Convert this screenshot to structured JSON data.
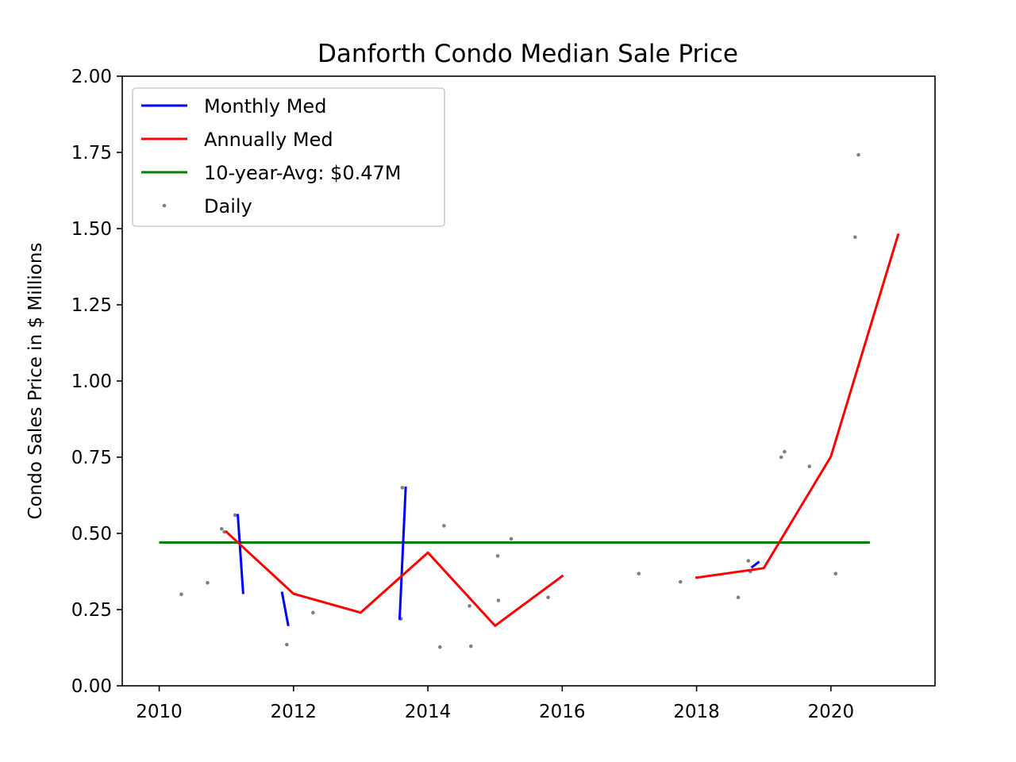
{
  "chart_data": {
    "type": "line",
    "title": "Danforth Condo Median Sale Price",
    "xlabel": "",
    "ylabel": "Condo Sales Price in $ Millions",
    "xlim": [
      2009.45,
      2021.55
    ],
    "ylim": [
      0,
      2.0
    ],
    "xticks": [
      2010,
      2012,
      2014,
      2016,
      2018,
      2020
    ],
    "yticks": [
      0.0,
      0.25,
      0.5,
      0.75,
      1.0,
      1.25,
      1.5,
      1.75,
      2.0
    ],
    "ytick_labels": [
      "0.00",
      "0.25",
      "0.50",
      "0.75",
      "1.00",
      "1.25",
      "1.50",
      "1.75",
      "2.00"
    ],
    "grid": false,
    "legend_position": "upper-left",
    "series": [
      {
        "name": "Monthly Med",
        "color": "#0000ff",
        "kind": "line-segments",
        "segments": [
          [
            [
              2011.17,
              0.56
            ],
            [
              2011.25,
              0.305
            ]
          ],
          [
            [
              2011.83,
              0.305
            ],
            [
              2011.92,
              0.2
            ]
          ],
          [
            [
              2013.58,
              0.22
            ],
            [
              2013.67,
              0.65
            ]
          ],
          [
            [
              2018.83,
              0.39
            ],
            [
              2018.92,
              0.405
            ]
          ]
        ]
      },
      {
        "name": "Annually Med",
        "color": "#ff0000",
        "kind": "line-segments",
        "segments": [
          [
            [
              2011.0,
              0.505
            ],
            [
              2012.0,
              0.302
            ],
            [
              2013.0,
              0.24
            ],
            [
              2014.0,
              0.437
            ],
            [
              2015.0,
              0.197
            ],
            [
              2016.0,
              0.36
            ]
          ],
          [
            [
              2018.0,
              0.355
            ],
            [
              2019.0,
              0.386
            ],
            [
              2020.0,
              0.752
            ],
            [
              2021.0,
              1.48
            ]
          ]
        ]
      },
      {
        "name": "10-year-Avg: $0.47M",
        "color": "#008000",
        "kind": "hline",
        "value": 0.47,
        "x_range": [
          2010.0,
          2020.58
        ]
      },
      {
        "name": "Daily",
        "color": "#808080",
        "kind": "scatter",
        "points": [
          [
            2010.33,
            0.3
          ],
          [
            2010.72,
            0.338
          ],
          [
            2010.93,
            0.515
          ],
          [
            2010.97,
            0.505
          ],
          [
            2011.13,
            0.56
          ],
          [
            2011.9,
            0.135
          ],
          [
            2012.29,
            0.24
          ],
          [
            2013.6,
            0.22
          ],
          [
            2013.62,
            0.65
          ],
          [
            2014.18,
            0.127
          ],
          [
            2014.24,
            0.525
          ],
          [
            2014.62,
            0.262
          ],
          [
            2014.64,
            0.13
          ],
          [
            2015.05,
            0.28
          ],
          [
            2015.04,
            0.426
          ],
          [
            2015.24,
            0.482
          ],
          [
            2015.79,
            0.29
          ],
          [
            2017.14,
            0.368
          ],
          [
            2017.76,
            0.341
          ],
          [
            2018.62,
            0.29
          ],
          [
            2018.77,
            0.41
          ],
          [
            2018.8,
            0.375
          ],
          [
            2019.26,
            0.75
          ],
          [
            2019.31,
            0.768
          ],
          [
            2019.68,
            0.72
          ],
          [
            2020.07,
            0.368
          ],
          [
            2020.36,
            1.472
          ],
          [
            2020.41,
            1.742
          ]
        ]
      }
    ],
    "legend": [
      {
        "label": "Monthly Med",
        "color": "#0000ff",
        "marker": "line"
      },
      {
        "label": "Annually Med",
        "color": "#ff0000",
        "marker": "line"
      },
      {
        "label": "10-year-Avg: $0.47M",
        "color": "#008000",
        "marker": "line"
      },
      {
        "label": "Daily",
        "color": "#808080",
        "marker": "dot"
      }
    ]
  }
}
